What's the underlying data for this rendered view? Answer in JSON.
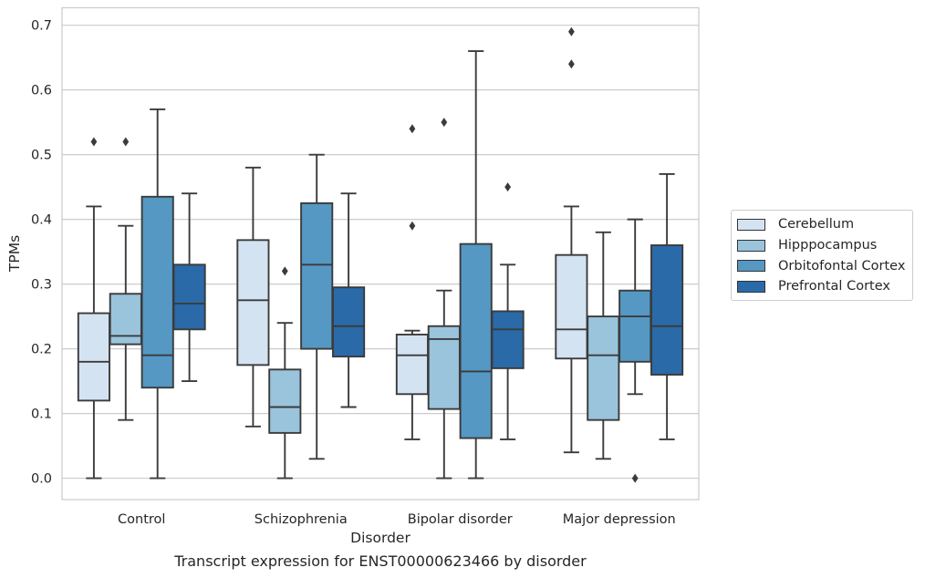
{
  "chart_data": {
    "type": "box",
    "xlabel": "Disorder",
    "ylabel": "TPMs",
    "caption": "Transcript expression for ENST00000623466 by disorder",
    "ylim": [
      -0.033,
      0.727
    ],
    "yticks": [
      "0.0",
      "0.1",
      "0.2",
      "0.3",
      "0.4",
      "0.5",
      "0.6",
      "0.7"
    ],
    "grid": "horizontal",
    "legend_position": "right",
    "categories": [
      "Control",
      "Schizophrenia",
      "Bipolar disorder",
      "Major depression"
    ],
    "series": [
      {
        "name": "Cerebellum",
        "color": "#d4e3f2",
        "boxes": [
          {
            "whislo": 0.0,
            "q1": 0.12,
            "med": 0.18,
            "q3": 0.255,
            "whishi": 0.42,
            "fliers": [
              0.52
            ]
          },
          {
            "whislo": 0.08,
            "q1": 0.175,
            "med": 0.275,
            "q3": 0.368,
            "whishi": 0.48,
            "fliers": []
          },
          {
            "whislo": 0.06,
            "q1": 0.13,
            "med": 0.19,
            "q3": 0.222,
            "whishi": 0.228,
            "fliers": [
              0.39,
              0.54
            ]
          },
          {
            "whislo": 0.04,
            "q1": 0.185,
            "med": 0.23,
            "q3": 0.345,
            "whishi": 0.42,
            "fliers": [
              0.64,
              0.69
            ]
          }
        ]
      },
      {
        "name": "Hipppocampus",
        "color": "#9ac4dc",
        "boxes": [
          {
            "whislo": 0.09,
            "q1": 0.207,
            "med": 0.22,
            "q3": 0.285,
            "whishi": 0.39,
            "fliers": [
              0.52
            ]
          },
          {
            "whislo": 0.0,
            "q1": 0.07,
            "med": 0.11,
            "q3": 0.168,
            "whishi": 0.24,
            "fliers": [
              0.32
            ]
          },
          {
            "whislo": 0.0,
            "q1": 0.107,
            "med": 0.215,
            "q3": 0.235,
            "whishi": 0.29,
            "fliers": [
              0.55
            ]
          },
          {
            "whislo": 0.03,
            "q1": 0.09,
            "med": 0.19,
            "q3": 0.25,
            "whishi": 0.38,
            "fliers": []
          }
        ]
      },
      {
        "name": "Orbitofontal Cortex",
        "color": "#5598c4",
        "boxes": [
          {
            "whislo": 0.0,
            "q1": 0.14,
            "med": 0.19,
            "q3": 0.435,
            "whishi": 0.57,
            "fliers": []
          },
          {
            "whislo": 0.03,
            "q1": 0.2,
            "med": 0.33,
            "q3": 0.425,
            "whishi": 0.5,
            "fliers": []
          },
          {
            "whislo": 0.0,
            "q1": 0.062,
            "med": 0.165,
            "q3": 0.362,
            "whishi": 0.66,
            "fliers": []
          },
          {
            "whislo": 0.13,
            "q1": 0.18,
            "med": 0.25,
            "q3": 0.29,
            "whishi": 0.4,
            "fliers": [
              0.0
            ]
          }
        ]
      },
      {
        "name": "Prefrontal Cortex",
        "color": "#2b6aa8",
        "boxes": [
          {
            "whislo": 0.15,
            "q1": 0.23,
            "med": 0.27,
            "q3": 0.33,
            "whishi": 0.44,
            "fliers": []
          },
          {
            "whislo": 0.11,
            "q1": 0.188,
            "med": 0.235,
            "q3": 0.295,
            "whishi": 0.44,
            "fliers": []
          },
          {
            "whislo": 0.06,
            "q1": 0.17,
            "med": 0.23,
            "q3": 0.258,
            "whishi": 0.33,
            "fliers": [
              0.45
            ]
          },
          {
            "whislo": 0.06,
            "q1": 0.16,
            "med": 0.235,
            "q3": 0.36,
            "whishi": 0.47,
            "fliers": []
          }
        ]
      }
    ]
  }
}
